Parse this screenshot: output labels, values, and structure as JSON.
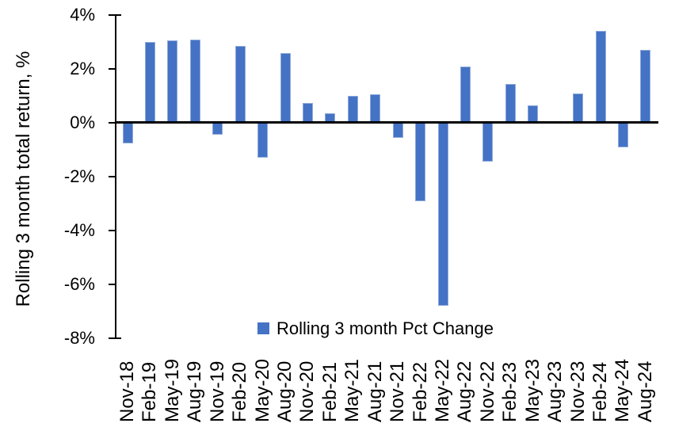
{
  "chart_data": {
    "type": "bar",
    "title": "",
    "xlabel": "",
    "ylabel": "Rolling 3 month total return, %",
    "categories": [
      "Nov-18",
      "Feb-19",
      "May-19",
      "Aug-19",
      "Nov-19",
      "Feb-20",
      "May-20",
      "Aug-20",
      "Nov-20",
      "Feb-21",
      "May-21",
      "Aug-21",
      "Nov-21",
      "Feb-22",
      "May-22",
      "Aug-22",
      "Nov-22",
      "Feb-23",
      "May-23",
      "Aug-23",
      "Nov-23",
      "Feb-24",
      "May-24",
      "Aug-24"
    ],
    "series": [
      {
        "name": "Rolling 3 month Pct Change",
        "values": [
          -0.75,
          3.0,
          3.05,
          3.1,
          -0.45,
          2.85,
          -1.3,
          2.6,
          0.75,
          0.35,
          1.0,
          1.05,
          -0.55,
          -2.9,
          -6.8,
          2.1,
          -1.45,
          1.45,
          0.65,
          0,
          1.1,
          3.4,
          -0.9,
          2.7
        ]
      }
    ],
    "ylim": [
      -8,
      4
    ],
    "yticks": [
      {
        "label": "4%",
        "value": 4
      },
      {
        "label": "2%",
        "value": 2
      },
      {
        "label": "0%",
        "value": 0
      },
      {
        "label": "-2%",
        "value": -2
      },
      {
        "label": "-4%",
        "value": -4
      },
      {
        "label": "-6%",
        "value": -6
      },
      {
        "label": "-8%",
        "value": -8
      }
    ],
    "grid": "off",
    "legend_position": "bottom-center-inside",
    "bar_color": "#4472C4",
    "bar_border_color": "#8FAADC",
    "axis_color": "#000000",
    "value_format": "percent"
  }
}
